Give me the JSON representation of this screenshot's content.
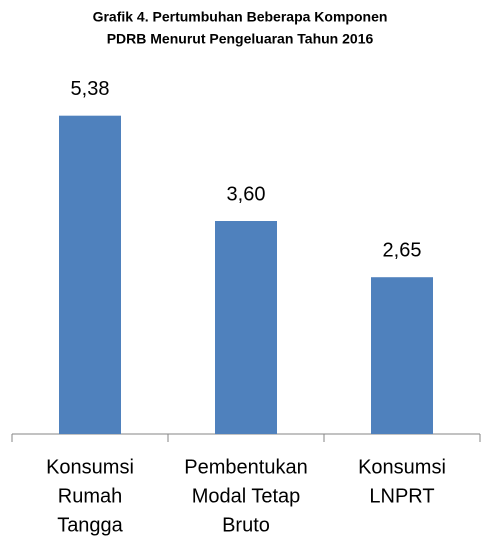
{
  "chart_data": {
    "type": "bar",
    "title": [
      "Grafik 4. Pertumbuhan Beberapa Komponen",
      "PDRB Menurut Pengeluaran Tahun 2016"
    ],
    "categories": [
      [
        "Konsumsi",
        "Rumah",
        "Tangga"
      ],
      [
        "Pembentukan",
        "Modal Tetap",
        "Bruto"
      ],
      [
        "Konsumsi",
        "LNPRT"
      ]
    ],
    "values": [
      5.38,
      3.6,
      2.65
    ],
    "value_labels": [
      "5,38",
      "3,60",
      "2,65"
    ],
    "color": "#4f81bd",
    "ylim": [
      0,
      6
    ]
  }
}
